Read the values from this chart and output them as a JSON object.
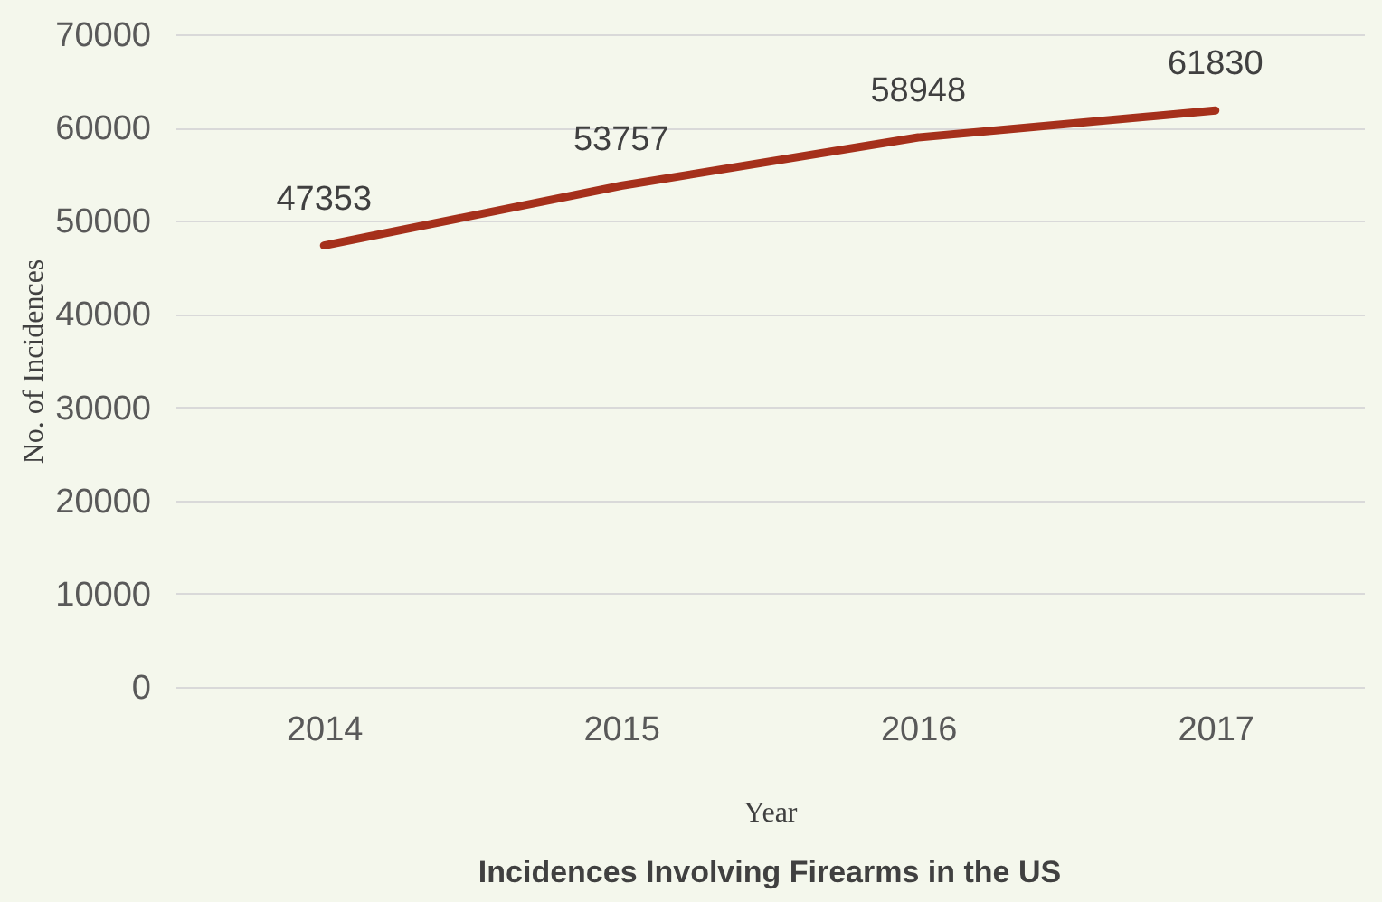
{
  "chart_data": {
    "type": "line",
    "title": "Incidences Involving Firearms in the US",
    "xlabel": "Year",
    "ylabel": "No. of Incidences",
    "categories": [
      "2014",
      "2015",
      "2016",
      "2017"
    ],
    "series": [
      {
        "color": "#a5301b",
        "values": [
          47353,
          53757,
          58948,
          61830
        ]
      }
    ],
    "ylim": [
      0,
      70000
    ],
    "yticks": [
      0,
      10000,
      20000,
      30000,
      40000,
      50000,
      60000,
      70000
    ],
    "grid": "y",
    "data_labels": true,
    "marker": "none",
    "line_style": "solid"
  }
}
